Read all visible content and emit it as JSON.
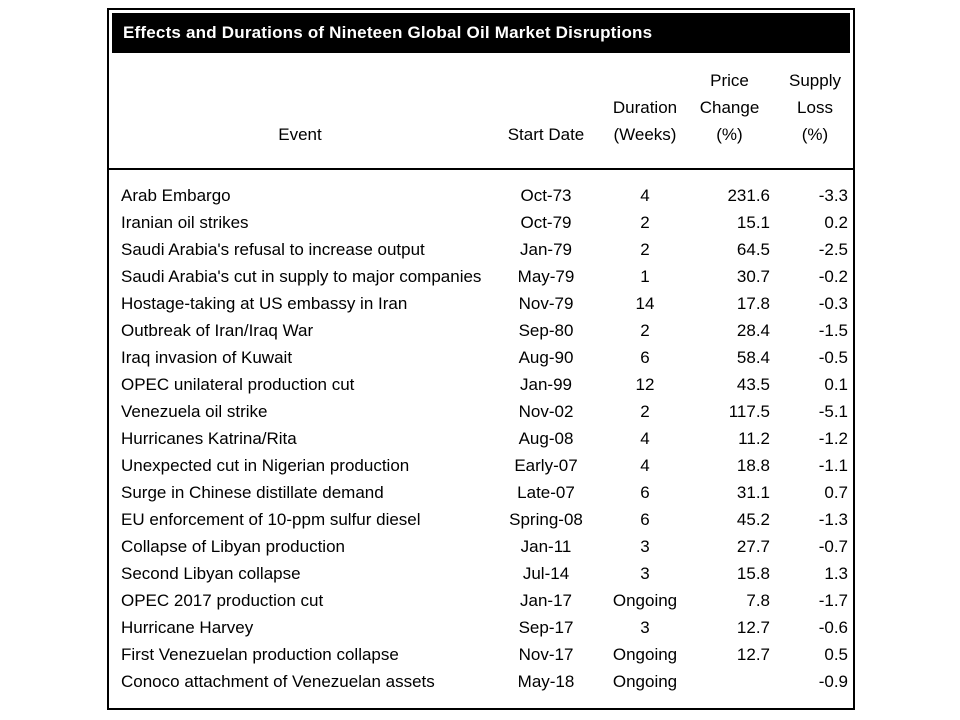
{
  "colors": {
    "title_bar_bg": "#000000",
    "title_bar_text": "#ffffff",
    "border": "#000000",
    "background": "#ffffff",
    "text": "#000000"
  },
  "title_bar": {
    "title": "Effects and Durations of Nineteen Global Oil Market Disruptions"
  },
  "table": {
    "headers_display": {
      "event": "Event",
      "start_date": "Start Date",
      "duration": "Duration\n(Weeks)",
      "price_change": "Price\nChange\n(%)",
      "supply_loss": "Supply\nLoss\n(%)"
    }
  },
  "chart_data": {
    "type": "table",
    "title": "Effects and Durations of Nineteen Global Oil Market Disruptions",
    "columns": [
      "Event",
      "Start Date",
      "Duration (Weeks)",
      "Price Change (%)",
      "Supply Loss (%)"
    ],
    "rows": [
      [
        "Arab Embargo",
        "Oct-73",
        "4",
        "231.6",
        "-3.3"
      ],
      [
        "Iranian oil strikes",
        "Oct-79",
        "2",
        "15.1",
        "0.2"
      ],
      [
        "Saudi Arabia's refusal to increase output",
        "Jan-79",
        "2",
        "64.5",
        "-2.5"
      ],
      [
        "Saudi Arabia's cut in supply to major companies",
        "May-79",
        "1",
        "30.7",
        "-0.2"
      ],
      [
        "Hostage-taking at US embassy in Iran",
        "Nov-79",
        "14",
        "17.8",
        "-0.3"
      ],
      [
        "Outbreak of Iran/Iraq War",
        "Sep-80",
        "2",
        "28.4",
        "-1.5"
      ],
      [
        "Iraq invasion of Kuwait",
        "Aug-90",
        "6",
        "58.4",
        "-0.5"
      ],
      [
        "OPEC unilateral production cut",
        "Jan-99",
        "12",
        "43.5",
        "0.1"
      ],
      [
        "Venezuela oil strike",
        "Nov-02",
        "2",
        "117.5",
        "-5.1"
      ],
      [
        "Hurricanes Katrina/Rita",
        "Aug-08",
        "4",
        "11.2",
        "-1.2"
      ],
      [
        "Unexpected cut in Nigerian production",
        "Early-07",
        "4",
        "18.8",
        "-1.1"
      ],
      [
        "Surge in Chinese distillate demand",
        "Late-07",
        "6",
        "31.1",
        "0.7"
      ],
      [
        "EU enforcement of 10-ppm sulfur diesel",
        "Spring-08",
        "6",
        "45.2",
        "-1.3"
      ],
      [
        "Collapse of Libyan production",
        "Jan-11",
        "3",
        "27.7",
        "-0.7"
      ],
      [
        "Second Libyan collapse",
        "Jul-14",
        "3",
        "15.8",
        "1.3"
      ],
      [
        "OPEC 2017 production cut",
        "Jan-17",
        "Ongoing",
        "7.8",
        "-1.7"
      ],
      [
        "Hurricane Harvey",
        "Sep-17",
        "3",
        "12.7",
        "-0.6"
      ],
      [
        "First Venezuelan production collapse",
        "Nov-17",
        "Ongoing",
        "12.7",
        "0.5"
      ],
      [
        "Conoco attachment of Venezuelan assets",
        "May-18",
        "Ongoing",
        "",
        "-0.9"
      ]
    ]
  }
}
